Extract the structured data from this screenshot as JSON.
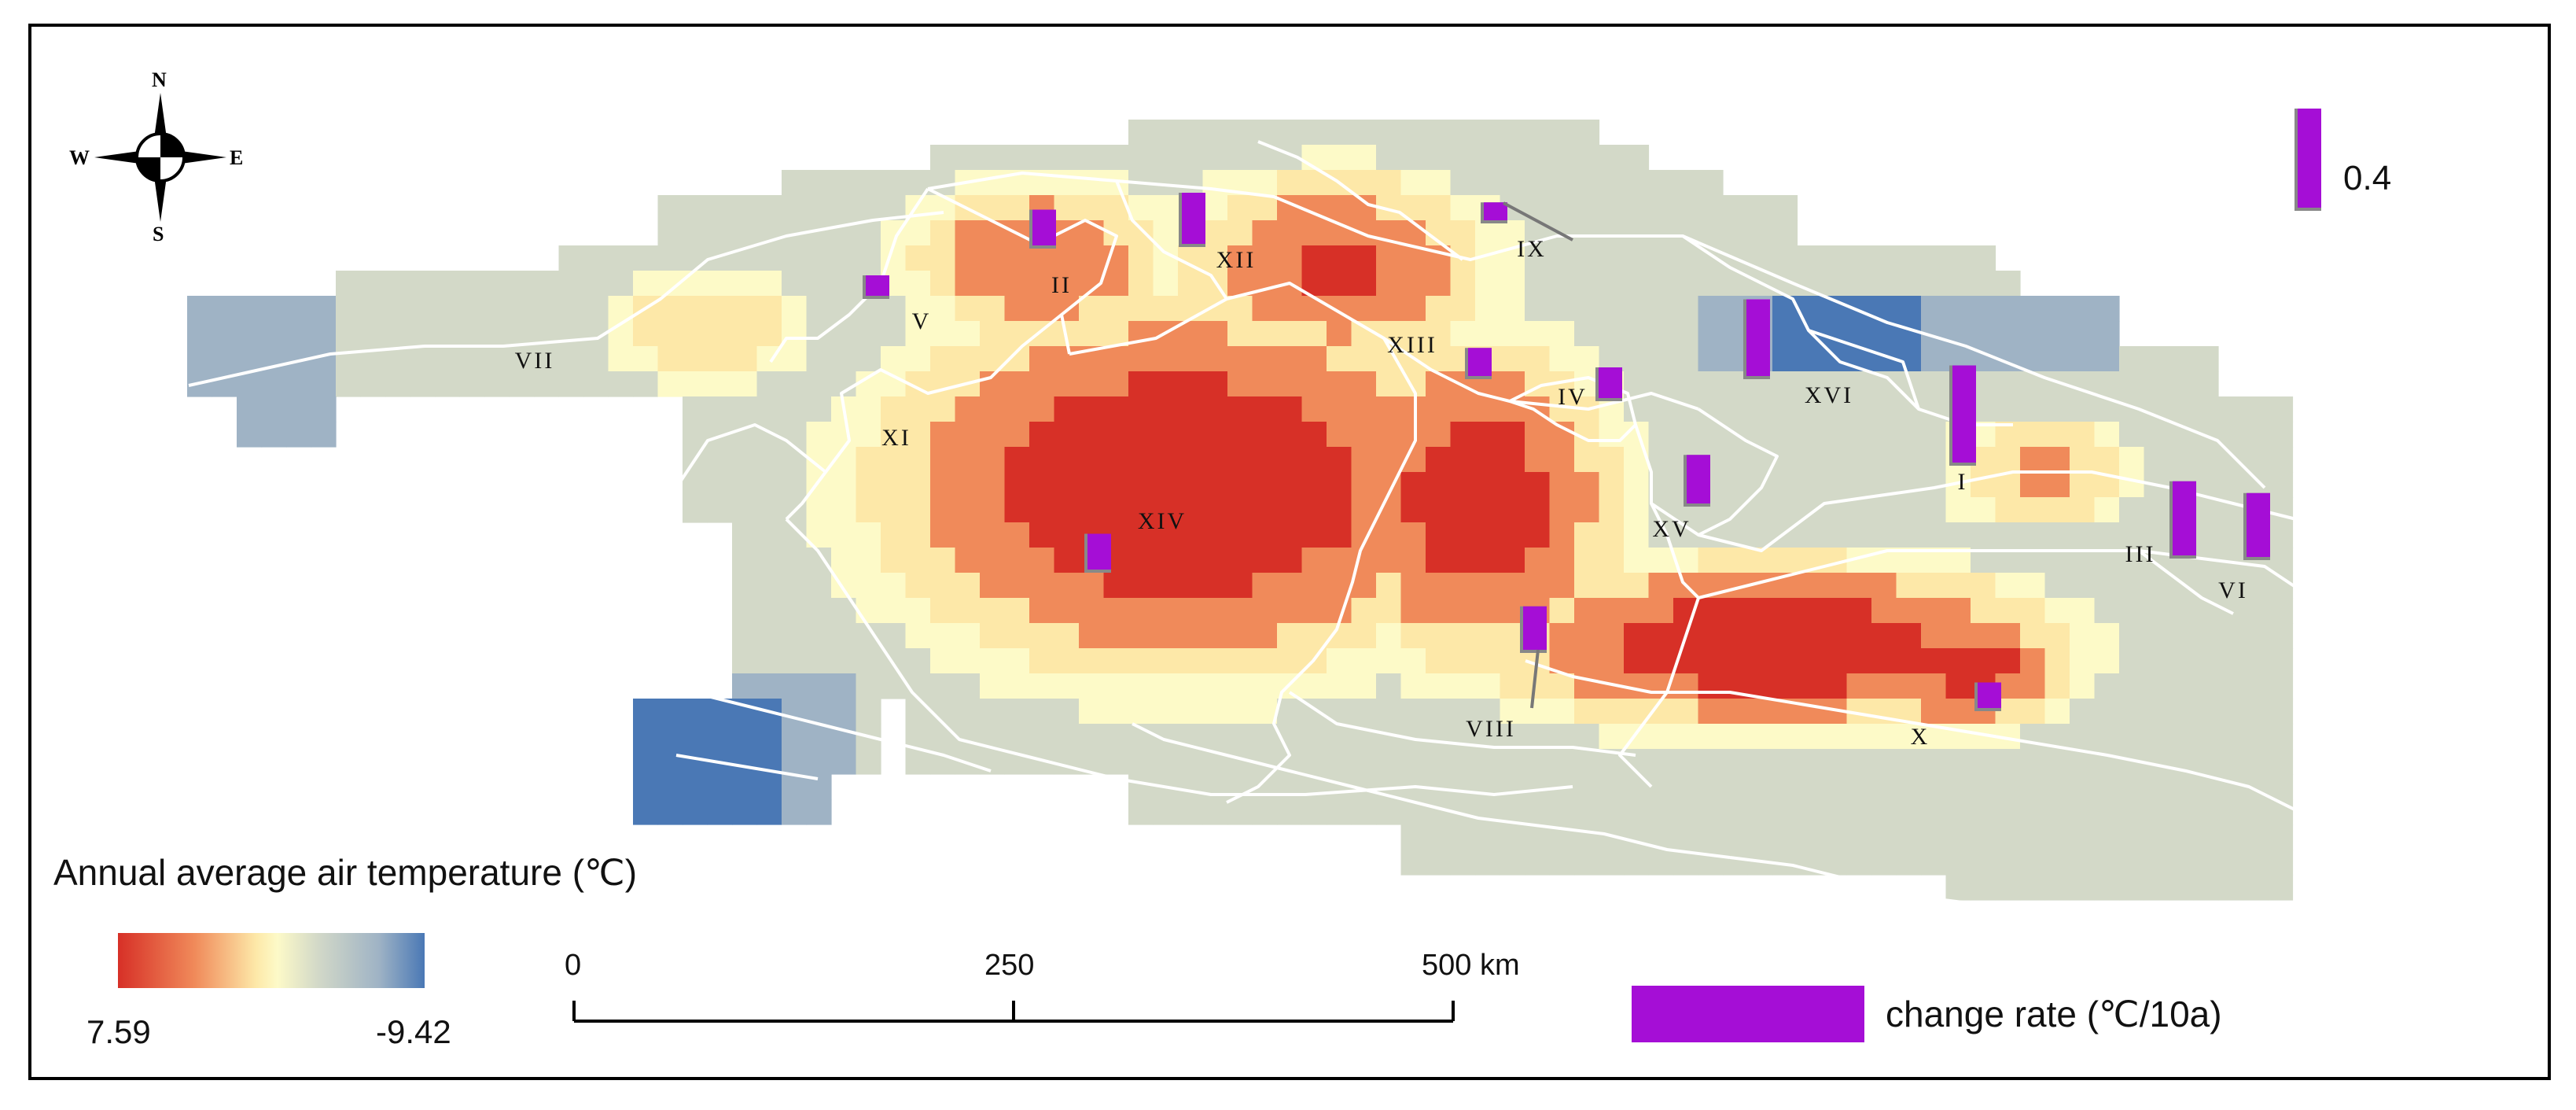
{
  "legend": {
    "title": "Annual average air temperature (℃)",
    "min_label": "7.59",
    "max_label": "-9.42",
    "colors": [
      "#d73027",
      "#f08a5a",
      "#fde8a8",
      "#fdfac8",
      "#d3d9c8",
      "#9fb3c5",
      "#4a78b5"
    ]
  },
  "scale_bar": {
    "tick0": "0",
    "tick1": "250",
    "tick2": "500 km"
  },
  "change_rate_legend": {
    "label": "change rate (℃/10a)",
    "color": "#a50ed6"
  },
  "reference_bar": {
    "label": "0.4",
    "value": 0.4
  },
  "compass": {
    "n": "N",
    "s": "S",
    "e": "E",
    "w": "W"
  },
  "regions": [
    {
      "label": "I",
      "rate": 0.38
    },
    {
      "label": "II",
      "rate": 0.14
    },
    {
      "label": "III",
      "rate": 0.29
    },
    {
      "label": "IV",
      "rate": 0.12
    },
    {
      "label": "V",
      "rate": 0.08
    },
    {
      "label": "VI",
      "rate": 0.25
    },
    {
      "label": "VII",
      "rate": null
    },
    {
      "label": "VIII",
      "rate": 0.17
    },
    {
      "label": "IX",
      "rate": 0.07
    },
    {
      "label": "X",
      "rate": 0.1
    },
    {
      "label": "XI",
      "rate": null
    },
    {
      "label": "XII",
      "rate": 0.2
    },
    {
      "label": "XIII",
      "rate": 0.11
    },
    {
      "label": "XIV",
      "rate": 0.14
    },
    {
      "label": "XV",
      "rate": 0.19
    },
    {
      "label": "XVI",
      "rate": 0.3
    }
  ]
}
